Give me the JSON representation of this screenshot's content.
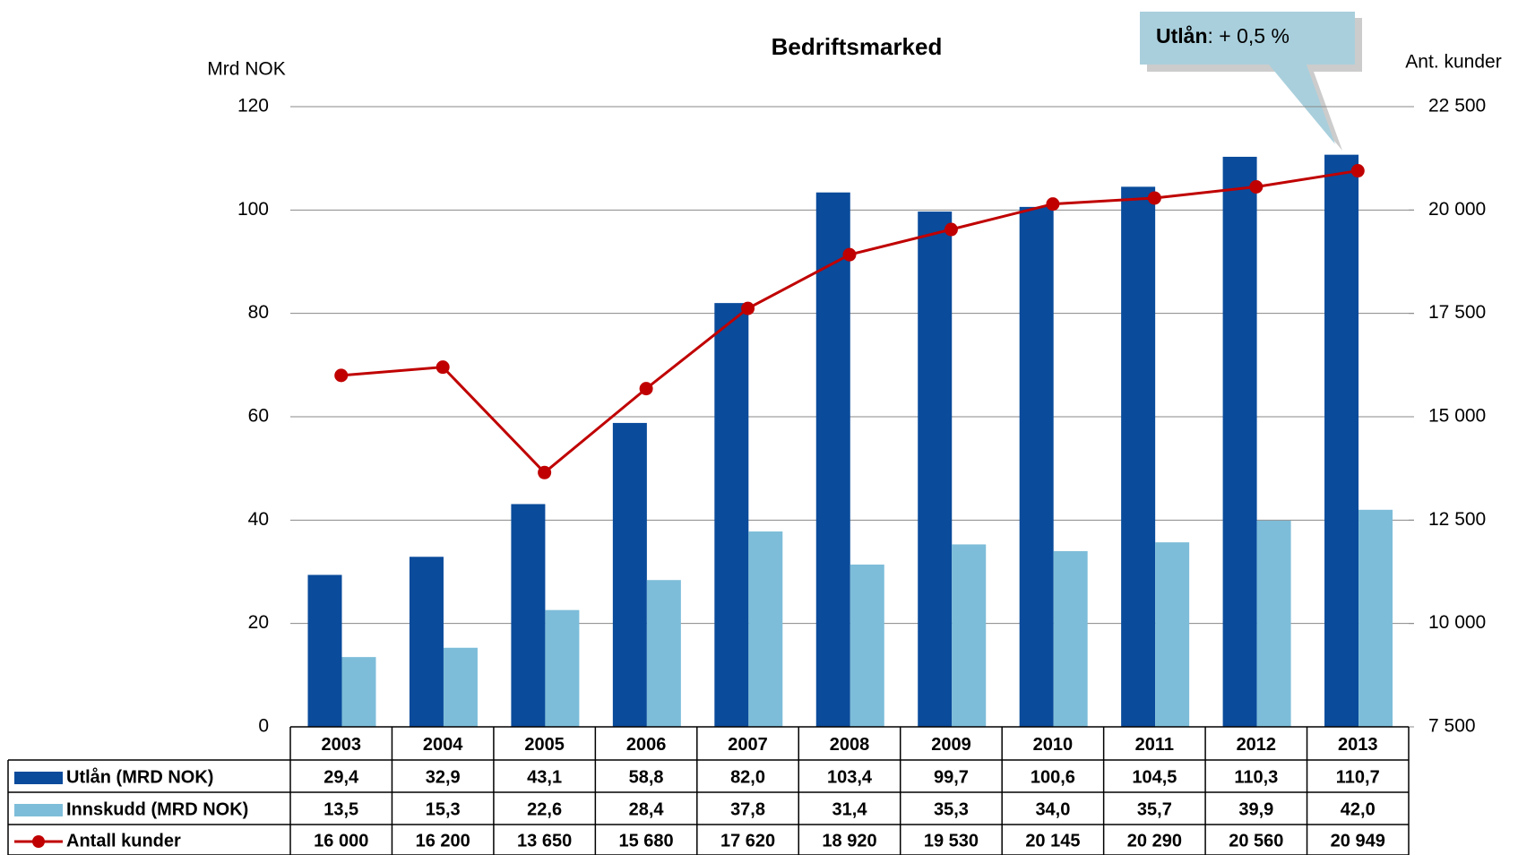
{
  "chart_data": {
    "type": "bar",
    "title": "Bedriftsmarked",
    "y_label": "Mrd NOK",
    "y2_label": "Ant. kunder",
    "annotation": {
      "label": "Utlån",
      "text": ": + 0,5  %"
    },
    "categories": [
      "2003",
      "2004",
      "2005",
      "2006",
      "2007",
      "2008",
      "2009",
      "2010",
      "2011",
      "2012",
      "2013"
    ],
    "series": [
      {
        "name": "Utlån (MRD NOK)",
        "type": "bar",
        "color": "#0a4b9b",
        "values": [
          29.4,
          32.9,
          43.1,
          58.8,
          82.0,
          103.4,
          99.7,
          100.6,
          104.5,
          110.3,
          110.7
        ],
        "value_labels": [
          "29,4",
          "32,9",
          "43,1",
          "58,8",
          "82,0",
          "103,4",
          "99,7",
          "100,6",
          "104,5",
          "110,3",
          "110,7"
        ]
      },
      {
        "name": "Innskudd (MRD NOK)",
        "type": "bar",
        "color": "#7dbdd9",
        "values": [
          13.5,
          15.3,
          22.6,
          28.4,
          37.8,
          31.4,
          35.3,
          34.0,
          35.7,
          39.9,
          42.0
        ],
        "value_labels": [
          "13,5",
          "15,3",
          "22,6",
          "28,4",
          "37,8",
          "31,4",
          "35,3",
          "34,0",
          "35,7",
          "39,9",
          "42,0"
        ]
      },
      {
        "name": "Antall kunder",
        "type": "line",
        "axis": "y2",
        "color": "#c00000",
        "values": [
          16000,
          16200,
          13650,
          15680,
          17620,
          18920,
          19530,
          20145,
          20290,
          20560,
          20949
        ],
        "value_labels": [
          "16 000",
          "16 200",
          "13 650",
          "15 680",
          "17 620",
          "18 920",
          "19 530",
          "20 145",
          "20 290",
          "20 560",
          "20 949"
        ]
      }
    ],
    "ylim": [
      0,
      120
    ],
    "yticks": [
      0,
      20,
      40,
      60,
      80,
      100,
      120
    ],
    "y2lim": [
      7500,
      22500
    ],
    "y2ticks": [
      {
        "value": 7500,
        "label": "7 500"
      },
      {
        "value": 10000,
        "label": "10 000"
      },
      {
        "value": 12500,
        "label": "12 500"
      },
      {
        "value": 15000,
        "label": "15 000"
      },
      {
        "value": 17500,
        "label": "17 500"
      },
      {
        "value": 20000,
        "label": "20 000"
      },
      {
        "value": 22500,
        "label": "22 500"
      }
    ],
    "grid": true
  }
}
